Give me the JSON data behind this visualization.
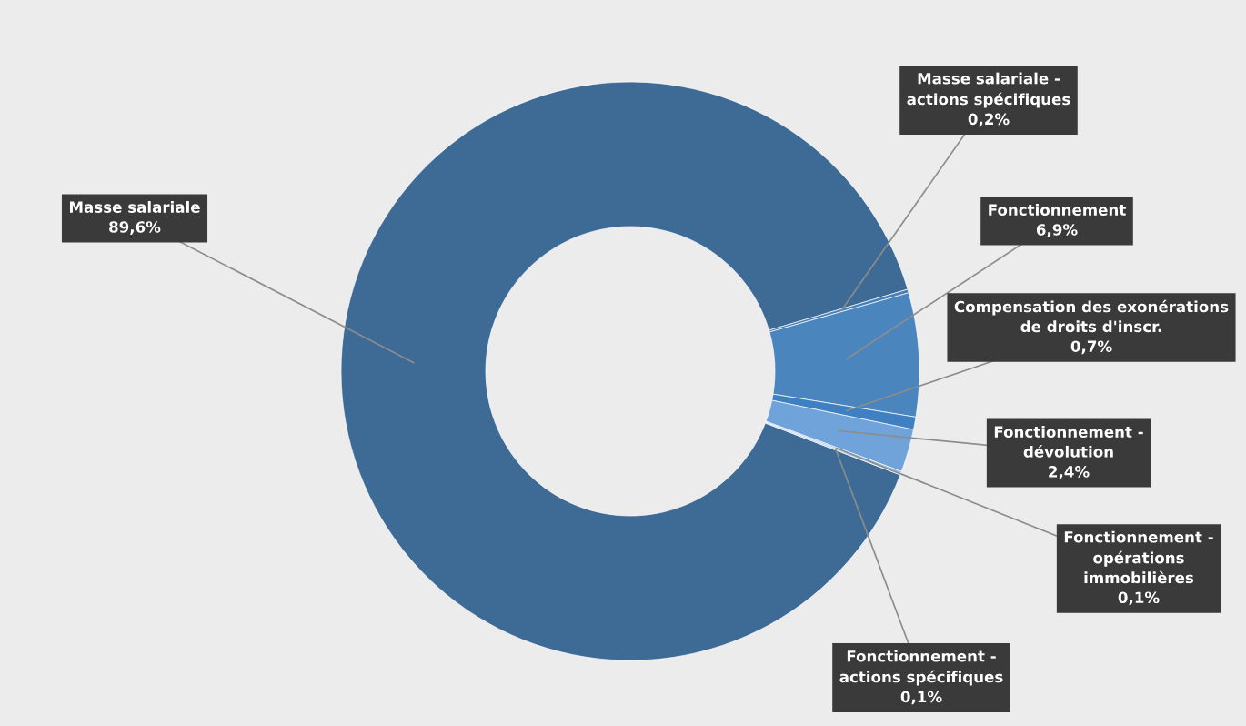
{
  "chart_data": {
    "type": "donut",
    "categories": [
      "Masse salariale",
      "Masse salariale - actions spécifiques",
      "Fonctionnement",
      "Compensation des exonérations de droits d'inscr.",
      "Fonctionnement - dévolution",
      "Fonctionnement - opérations immobilières",
      "Fonctionnement - actions spécifiques"
    ],
    "values": [
      89.6,
      0.2,
      6.9,
      0.7,
      2.4,
      0.1,
      0.1
    ],
    "value_labels": [
      "89,6%",
      "0,2%",
      "6,9%",
      "0,7%",
      "2,4%",
      "0,1%",
      "0,1%"
    ],
    "colors": [
      "#3e6a96",
      "#4a7fb5",
      "#4a86bd",
      "#3f80c2",
      "#6fa3d9",
      "#8db7e3",
      "#a9c8ea"
    ],
    "legend": false
  }
}
